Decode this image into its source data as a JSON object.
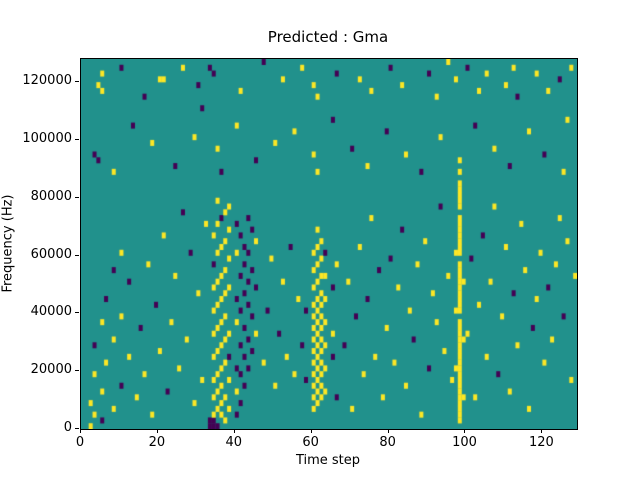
{
  "chart_data": {
    "type": "heatmap",
    "title": "Predicted : Gma",
    "xlabel": "Time step",
    "ylabel": "Frequency (Hz)",
    "xlim": [
      0,
      129
    ],
    "ylim": [
      0,
      128000
    ],
    "x_ticks": [
      0,
      20,
      40,
      60,
      80,
      100,
      120
    ],
    "y_ticks": [
      0,
      20000,
      40000,
      60000,
      80000,
      100000,
      120000
    ],
    "grid_cols": 129,
    "grid_rows": 64,
    "row_height_hz": 2000,
    "legend": "none",
    "grid": false,
    "colors": {
      "background": "#21918c",
      "yellow": "#fde725",
      "dark": "#440154"
    },
    "value_legend": {
      "0": "background",
      "1": "yellow",
      "2": "dark"
    },
    "cells": [
      [
        2,
        0,
        1
      ],
      [
        2,
        4,
        1
      ],
      [
        3,
        2,
        1
      ],
      [
        3,
        9,
        1
      ],
      [
        3,
        14,
        2
      ],
      [
        5,
        1,
        2
      ],
      [
        5,
        6,
        1
      ],
      [
        5,
        18,
        1
      ],
      [
        6,
        11,
        1
      ],
      [
        6,
        22,
        2
      ],
      [
        8,
        3,
        1
      ],
      [
        8,
        15,
        1
      ],
      [
        8,
        27,
        2
      ],
      [
        10,
        7,
        2
      ],
      [
        10,
        19,
        1
      ],
      [
        10,
        30,
        1
      ],
      [
        12,
        12,
        1
      ],
      [
        12,
        25,
        2
      ],
      [
        14,
        5,
        1
      ],
      [
        15,
        17,
        2
      ],
      [
        16,
        9,
        1
      ],
      [
        17,
        28,
        1
      ],
      [
        18,
        2,
        1
      ],
      [
        19,
        21,
        2
      ],
      [
        20,
        13,
        1
      ],
      [
        21,
        33,
        1
      ],
      [
        22,
        6,
        2
      ],
      [
        23,
        18,
        1
      ],
      [
        24,
        26,
        1
      ],
      [
        25,
        10,
        1
      ],
      [
        26,
        37,
        2
      ],
      [
        27,
        15,
        1
      ],
      [
        28,
        30,
        2
      ],
      [
        29,
        4,
        1
      ],
      [
        30,
        23,
        1
      ],
      [
        31,
        8,
        1
      ],
      [
        32,
        35,
        1
      ],
      [
        33,
        0,
        2
      ],
      [
        33,
        1,
        2
      ],
      [
        34,
        0,
        2
      ],
      [
        34,
        1,
        2
      ],
      [
        34,
        2,
        1
      ],
      [
        34,
        5,
        1
      ],
      [
        34,
        8,
        1
      ],
      [
        34,
        12,
        1
      ],
      [
        34,
        16,
        1
      ],
      [
        34,
        20,
        1
      ],
      [
        34,
        24,
        1
      ],
      [
        34,
        28,
        2
      ],
      [
        34,
        33,
        1
      ],
      [
        35,
        0,
        2
      ],
      [
        35,
        3,
        1
      ],
      [
        35,
        6,
        1
      ],
      [
        35,
        9,
        1
      ],
      [
        35,
        13,
        1
      ],
      [
        35,
        17,
        1
      ],
      [
        35,
        21,
        1
      ],
      [
        35,
        25,
        1
      ],
      [
        35,
        30,
        1
      ],
      [
        35,
        35,
        1
      ],
      [
        35,
        39,
        1
      ],
      [
        36,
        2,
        1
      ],
      [
        36,
        4,
        1
      ],
      [
        36,
        7,
        1
      ],
      [
        36,
        10,
        1
      ],
      [
        36,
        14,
        1
      ],
      [
        36,
        18,
        1
      ],
      [
        36,
        22,
        1
      ],
      [
        36,
        26,
        1
      ],
      [
        36,
        31,
        1
      ],
      [
        36,
        36,
        2
      ],
      [
        37,
        1,
        1
      ],
      [
        37,
        5,
        1
      ],
      [
        37,
        11,
        1
      ],
      [
        37,
        15,
        1
      ],
      [
        37,
        19,
        1
      ],
      [
        37,
        23,
        1
      ],
      [
        37,
        27,
        1
      ],
      [
        37,
        32,
        1
      ],
      [
        37,
        37,
        1
      ],
      [
        38,
        3,
        1
      ],
      [
        38,
        8,
        1
      ],
      [
        38,
        12,
        2
      ],
      [
        38,
        16,
        1
      ],
      [
        38,
        24,
        1
      ],
      [
        38,
        29,
        1
      ],
      [
        38,
        34,
        1
      ],
      [
        38,
        38,
        1
      ],
      [
        40,
        2,
        2
      ],
      [
        40,
        6,
        1
      ],
      [
        40,
        10,
        2
      ],
      [
        40,
        18,
        1
      ],
      [
        40,
        22,
        2
      ],
      [
        40,
        30,
        1
      ],
      [
        40,
        35,
        2
      ],
      [
        41,
        4,
        2
      ],
      [
        41,
        9,
        2
      ],
      [
        41,
        14,
        2
      ],
      [
        41,
        20,
        2
      ],
      [
        41,
        26,
        2
      ],
      [
        41,
        33,
        2
      ],
      [
        42,
        7,
        2
      ],
      [
        42,
        12,
        2
      ],
      [
        42,
        17,
        2
      ],
      [
        42,
        23,
        2
      ],
      [
        42,
        28,
        2
      ],
      [
        42,
        31,
        2
      ],
      [
        43,
        10,
        2
      ],
      [
        43,
        15,
        2
      ],
      [
        43,
        21,
        2
      ],
      [
        43,
        25,
        2
      ],
      [
        43,
        30,
        2
      ],
      [
        43,
        36,
        2
      ],
      [
        44,
        13,
        2
      ],
      [
        44,
        19,
        2
      ],
      [
        44,
        27,
        2
      ],
      [
        44,
        34,
        2
      ],
      [
        45,
        16,
        1
      ],
      [
        45,
        24,
        2
      ],
      [
        45,
        32,
        1
      ],
      [
        47,
        11,
        1
      ],
      [
        48,
        20,
        2
      ],
      [
        49,
        29,
        1
      ],
      [
        50,
        7,
        1
      ],
      [
        51,
        16,
        2
      ],
      [
        52,
        25,
        1
      ],
      [
        53,
        12,
        1
      ],
      [
        54,
        31,
        2
      ],
      [
        55,
        9,
        1
      ],
      [
        56,
        22,
        1
      ],
      [
        57,
        14,
        2
      ],
      [
        58,
        8,
        2
      ],
      [
        58,
        20,
        2
      ],
      [
        60,
        3,
        1
      ],
      [
        60,
        5,
        1
      ],
      [
        60,
        7,
        1
      ],
      [
        60,
        9,
        1
      ],
      [
        60,
        11,
        1
      ],
      [
        60,
        13,
        1
      ],
      [
        60,
        15,
        1
      ],
      [
        60,
        17,
        1
      ],
      [
        60,
        19,
        1
      ],
      [
        60,
        21,
        1
      ],
      [
        60,
        24,
        1
      ],
      [
        60,
        27,
        1
      ],
      [
        60,
        30,
        1
      ],
      [
        61,
        4,
        1
      ],
      [
        61,
        6,
        1
      ],
      [
        61,
        8,
        1
      ],
      [
        61,
        10,
        1
      ],
      [
        61,
        12,
        1
      ],
      [
        61,
        14,
        1
      ],
      [
        61,
        16,
        1
      ],
      [
        61,
        18,
        1
      ],
      [
        61,
        20,
        1
      ],
      [
        61,
        22,
        1
      ],
      [
        61,
        25,
        1
      ],
      [
        61,
        28,
        1
      ],
      [
        61,
        31,
        1
      ],
      [
        61,
        34,
        1
      ],
      [
        62,
        5,
        1
      ],
      [
        62,
        7,
        1
      ],
      [
        62,
        9,
        1
      ],
      [
        62,
        11,
        1
      ],
      [
        62,
        13,
        1
      ],
      [
        62,
        15,
        1
      ],
      [
        62,
        17,
        1
      ],
      [
        62,
        19,
        1
      ],
      [
        62,
        21,
        1
      ],
      [
        62,
        23,
        1
      ],
      [
        62,
        26,
        1
      ],
      [
        62,
        29,
        1
      ],
      [
        62,
        32,
        1
      ],
      [
        63,
        6,
        1
      ],
      [
        63,
        10,
        1
      ],
      [
        63,
        14,
        1
      ],
      [
        63,
        18,
        1
      ],
      [
        63,
        22,
        1
      ],
      [
        63,
        26,
        1
      ],
      [
        63,
        30,
        2
      ],
      [
        65,
        12,
        2
      ],
      [
        65,
        16,
        1
      ],
      [
        65,
        24,
        2
      ],
      [
        66,
        5,
        2
      ],
      [
        66,
        28,
        1
      ],
      [
        68,
        14,
        2
      ],
      [
        69,
        25,
        1
      ],
      [
        70,
        3,
        1
      ],
      [
        71,
        19,
        2
      ],
      [
        72,
        31,
        1
      ],
      [
        73,
        9,
        1
      ],
      [
        74,
        22,
        2
      ],
      [
        75,
        36,
        1
      ],
      [
        76,
        12,
        1
      ],
      [
        77,
        27,
        2
      ],
      [
        78,
        5,
        1
      ],
      [
        79,
        17,
        1
      ],
      [
        80,
        29,
        2
      ],
      [
        81,
        11,
        1
      ],
      [
        82,
        24,
        1
      ],
      [
        83,
        34,
        2
      ],
      [
        84,
        7,
        1
      ],
      [
        85,
        20,
        1
      ],
      [
        86,
        15,
        2
      ],
      [
        87,
        28,
        1
      ],
      [
        88,
        2,
        1
      ],
      [
        89,
        32,
        1
      ],
      [
        90,
        10,
        2
      ],
      [
        91,
        23,
        1
      ],
      [
        92,
        18,
        1
      ],
      [
        93,
        38,
        2
      ],
      [
        94,
        13,
        1
      ],
      [
        95,
        26,
        1
      ],
      [
        96,
        8,
        1
      ],
      [
        97,
        10,
        1
      ],
      [
        97,
        20,
        1
      ],
      [
        97,
        30,
        1
      ],
      [
        98,
        1,
        1
      ],
      [
        98,
        2,
        1
      ],
      [
        98,
        3,
        1
      ],
      [
        98,
        4,
        1
      ],
      [
        98,
        5,
        1
      ],
      [
        98,
        6,
        1
      ],
      [
        98,
        7,
        1
      ],
      [
        98,
        8,
        1
      ],
      [
        98,
        9,
        1
      ],
      [
        98,
        10,
        1
      ],
      [
        98,
        11,
        1
      ],
      [
        98,
        12,
        1
      ],
      [
        98,
        13,
        1
      ],
      [
        98,
        14,
        1
      ],
      [
        98,
        15,
        1
      ],
      [
        98,
        16,
        1
      ],
      [
        98,
        17,
        1
      ],
      [
        98,
        18,
        1
      ],
      [
        98,
        20,
        1
      ],
      [
        98,
        21,
        1
      ],
      [
        98,
        22,
        1
      ],
      [
        98,
        23,
        1
      ],
      [
        98,
        24,
        1
      ],
      [
        98,
        25,
        1
      ],
      [
        98,
        26,
        1
      ],
      [
        98,
        27,
        1
      ],
      [
        98,
        28,
        1
      ],
      [
        98,
        30,
        1
      ],
      [
        98,
        31,
        1
      ],
      [
        98,
        32,
        1
      ],
      [
        98,
        33,
        1
      ],
      [
        98,
        34,
        1
      ],
      [
        98,
        35,
        1
      ],
      [
        98,
        36,
        1
      ],
      [
        98,
        38,
        1
      ],
      [
        98,
        39,
        1
      ],
      [
        98,
        40,
        1
      ],
      [
        98,
        41,
        1
      ],
      [
        98,
        42,
        1
      ],
      [
        98,
        44,
        1
      ],
      [
        98,
        46,
        1
      ],
      [
        99,
        5,
        1
      ],
      [
        99,
        15,
        1
      ],
      [
        99,
        25,
        1
      ],
      [
        100,
        16,
        1
      ],
      [
        101,
        29,
        2
      ],
      [
        102,
        5,
        1
      ],
      [
        103,
        21,
        1
      ],
      [
        104,
        33,
        2
      ],
      [
        105,
        12,
        1
      ],
      [
        106,
        25,
        1
      ],
      [
        107,
        38,
        1
      ],
      [
        108,
        9,
        2
      ],
      [
        109,
        19,
        1
      ],
      [
        110,
        31,
        1
      ],
      [
        111,
        6,
        1
      ],
      [
        112,
        23,
        2
      ],
      [
        113,
        14,
        1
      ],
      [
        114,
        35,
        1
      ],
      [
        115,
        27,
        1
      ],
      [
        116,
        3,
        1
      ],
      [
        117,
        17,
        2
      ],
      [
        118,
        22,
        1
      ],
      [
        119,
        30,
        1
      ],
      [
        120,
        11,
        1
      ],
      [
        121,
        24,
        2
      ],
      [
        122,
        15,
        1
      ],
      [
        123,
        28,
        1
      ],
      [
        124,
        36,
        1
      ],
      [
        125,
        19,
        2
      ],
      [
        126,
        32,
        1
      ],
      [
        127,
        8,
        1
      ],
      [
        128,
        26,
        1
      ],
      [
        3,
        47,
        2
      ],
      [
        4,
        46,
        2
      ],
      [
        8,
        44,
        1
      ],
      [
        13,
        52,
        2
      ],
      [
        18,
        49,
        1
      ],
      [
        24,
        45,
        2
      ],
      [
        29,
        50,
        1
      ],
      [
        35,
        48,
        1
      ],
      [
        36,
        44,
        2
      ],
      [
        40,
        52,
        1
      ],
      [
        45,
        46,
        2
      ],
      [
        50,
        49,
        1
      ],
      [
        55,
        51,
        1
      ],
      [
        60,
        47,
        1
      ],
      [
        61,
        44,
        1
      ],
      [
        65,
        53,
        2
      ],
      [
        70,
        48,
        2
      ],
      [
        74,
        45,
        1
      ],
      [
        79,
        51,
        2
      ],
      [
        84,
        47,
        1
      ],
      [
        88,
        44,
        2
      ],
      [
        93,
        50,
        1
      ],
      [
        102,
        52,
        2
      ],
      [
        107,
        48,
        1
      ],
      [
        111,
        45,
        2
      ],
      [
        116,
        51,
        1
      ],
      [
        120,
        47,
        2
      ],
      [
        125,
        44,
        1
      ],
      [
        126,
        53,
        1
      ],
      [
        4,
        59,
        1
      ],
      [
        5,
        61,
        1
      ],
      [
        5,
        58,
        1
      ],
      [
        10,
        62,
        2
      ],
      [
        16,
        57,
        2
      ],
      [
        20,
        60,
        1
      ],
      [
        21,
        60,
        1
      ],
      [
        26,
        62,
        1
      ],
      [
        30,
        59,
        2
      ],
      [
        31,
        55,
        2
      ],
      [
        33,
        62,
        2
      ],
      [
        34,
        61,
        2
      ],
      [
        41,
        58,
        1
      ],
      [
        47,
        63,
        2
      ],
      [
        52,
        60,
        1
      ],
      [
        57,
        62,
        1
      ],
      [
        60,
        59,
        1
      ],
      [
        61,
        57,
        1
      ],
      [
        66,
        61,
        2
      ],
      [
        72,
        60,
        1
      ],
      [
        75,
        58,
        1
      ],
      [
        80,
        62,
        2
      ],
      [
        83,
        59,
        1
      ],
      [
        90,
        61,
        2
      ],
      [
        92,
        57,
        1
      ],
      [
        95,
        63,
        1
      ],
      [
        97,
        60,
        1
      ],
      [
        100,
        62,
        2
      ],
      [
        103,
        58,
        1
      ],
      [
        105,
        61,
        1
      ],
      [
        110,
        59,
        1
      ],
      [
        112,
        62,
        1
      ],
      [
        113,
        57,
        2
      ],
      [
        118,
        61,
        1
      ],
      [
        121,
        58,
        1
      ],
      [
        124,
        60,
        2
      ],
      [
        127,
        62,
        1
      ]
    ]
  }
}
